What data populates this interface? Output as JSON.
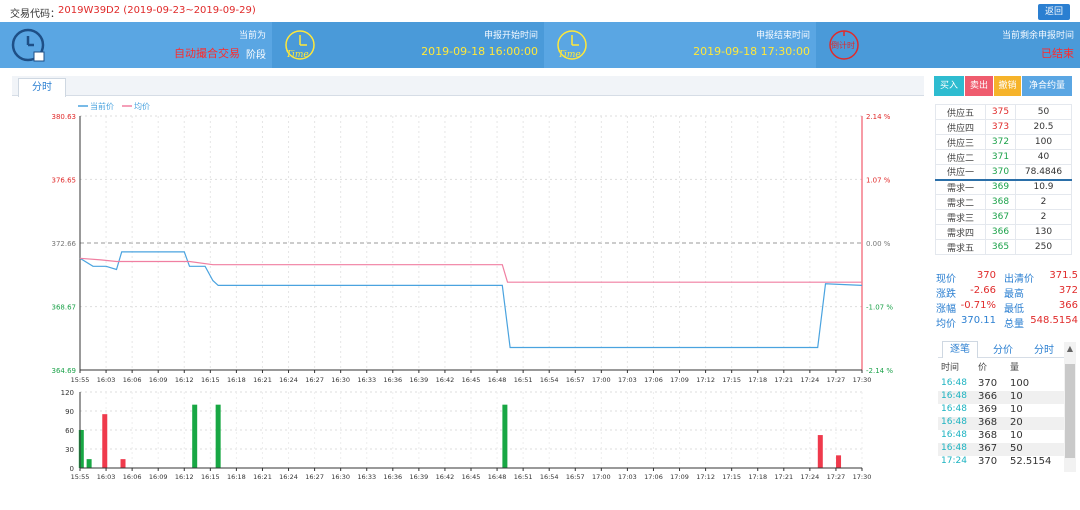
{
  "header": {
    "code_label": "交易代码：",
    "code_value": "2019W39D2 (2019-09-23~2019-09-29)",
    "back_label": "返回"
  },
  "infobar": {
    "stage_label": "当前为",
    "stage_value": "自动撮合交易",
    "stage_suffix": "阶段",
    "start_label": "申报开始时间",
    "start_value": "2019-09-18 16:00:00",
    "end_label": "申报结束时间",
    "end_value": "2019-09-18 17:30:00",
    "remain_label": "当前剩余申报时间",
    "remain_value": "已结束",
    "time_icon_text": "Time",
    "countdown_icon_text": "倒计时"
  },
  "tabs": {
    "fenshi": "分时"
  },
  "legend": {
    "current": "当前价",
    "average": "均价"
  },
  "buttons": {
    "buy": "买入",
    "sell": "卖出",
    "cancel": "撤销",
    "net": "净合约量"
  },
  "order_book": {
    "asks": [
      {
        "label": "供应五",
        "price": "375",
        "qty": "50"
      },
      {
        "label": "供应四",
        "price": "373",
        "qty": "20.5"
      },
      {
        "label": "供应三",
        "price": "372",
        "qty": "100"
      },
      {
        "label": "供应二",
        "price": "371",
        "qty": "40"
      },
      {
        "label": "供应一",
        "price": "370",
        "qty": "78.4846"
      }
    ],
    "bids": [
      {
        "label": "需求一",
        "price": "369",
        "qty": "10.9"
      },
      {
        "label": "需求二",
        "price": "368",
        "qty": "2"
      },
      {
        "label": "需求三",
        "price": "367",
        "qty": "2"
      },
      {
        "label": "需求四",
        "price": "366",
        "qty": "130"
      },
      {
        "label": "需求五",
        "price": "365",
        "qty": "250"
      }
    ]
  },
  "stats": {
    "now_label": "现价",
    "now": "370",
    "clear_label": "出清价",
    "clear": "371.5",
    "chg_label": "涨跌",
    "chg": "-2.66",
    "high_label": "最高",
    "high": "372",
    "pct_label": "涨幅",
    "pct": "-0.71%",
    "low_label": "最低",
    "low": "366",
    "avg_label": "均价",
    "avg": "370.11",
    "total_label": "总量",
    "total": "548.5154"
  },
  "ticks_panel": {
    "tab1": "逐笔",
    "tab2": "分价",
    "tab3": "分时",
    "col_time": "时间",
    "col_price": "价",
    "col_qty": "量",
    "rows": [
      {
        "time": "16:48",
        "price": "370",
        "qty": "100"
      },
      {
        "time": "16:48",
        "price": "366",
        "qty": "10"
      },
      {
        "time": "16:48",
        "price": "369",
        "qty": "10"
      },
      {
        "time": "16:48",
        "price": "368",
        "qty": "20"
      },
      {
        "time": "16:48",
        "price": "368",
        "qty": "10"
      },
      {
        "time": "16:48",
        "price": "367",
        "qty": "50"
      },
      {
        "time": "17:24",
        "price": "370",
        "qty": "52.5154"
      }
    ]
  },
  "chart_data": [
    {
      "type": "line",
      "title": "",
      "y_ticks": [
        "380.63",
        "376.65",
        "372.66",
        "368.67",
        "364.69"
      ],
      "y2_ticks": [
        "2.14 %",
        "1.07 %",
        "0.00 %",
        "-1.07 %",
        "-2.14 %"
      ],
      "ylim": [
        364.69,
        380.63
      ],
      "reference_price": 372.66,
      "x_ticks": [
        "15:55",
        "16:03",
        "16:06",
        "16:09",
        "16:12",
        "16:15",
        "16:18",
        "16:21",
        "16:24",
        "16:27",
        "16:30",
        "16:33",
        "16:36",
        "16:39",
        "16:42",
        "16:45",
        "16:48",
        "16:51",
        "16:54",
        "16:57",
        "17:00",
        "17:03",
        "17:06",
        "17:09",
        "17:12",
        "17:15",
        "17:18",
        "17:21",
        "17:24",
        "17:27",
        "17:30"
      ],
      "series": [
        {
          "name": "当前价",
          "color": "#4aa3df",
          "points": [
            [
              0,
              371.7
            ],
            [
              0.5,
              371.2
            ],
            [
              1.0,
              371.2
            ],
            [
              1.4,
              371.0
            ],
            [
              1.6,
              372.1
            ],
            [
              4.0,
              372.1
            ],
            [
              4.2,
              371.2
            ],
            [
              4.8,
              371.2
            ],
            [
              5.1,
              370.3
            ],
            [
              5.3,
              370.0
            ],
            [
              16.2,
              370.0
            ],
            [
              16.5,
              366.1
            ],
            [
              28.3,
              366.1
            ],
            [
              28.6,
              370.1
            ],
            [
              30.0,
              370.0
            ]
          ]
        },
        {
          "name": "均价",
          "color": "#f07fa1",
          "points": [
            [
              0,
              371.7
            ],
            [
              0.8,
              371.6
            ],
            [
              1.4,
              371.5
            ],
            [
              4.2,
              371.5
            ],
            [
              5.1,
              371.3
            ],
            [
              16.2,
              371.3
            ],
            [
              16.4,
              370.2
            ],
            [
              30.0,
              370.2
            ]
          ]
        }
      ]
    },
    {
      "type": "bar",
      "title": "",
      "ylim": [
        0,
        120
      ],
      "y_ticks": [
        "120",
        "90",
        "60",
        "30",
        "0"
      ],
      "x_ticks": [
        "15:55",
        "16:03",
        "16:06",
        "16:09",
        "16:12",
        "16:15",
        "16:18",
        "16:21",
        "16:24",
        "16:27",
        "16:30",
        "16:33",
        "16:36",
        "16:39",
        "16:42",
        "16:45",
        "16:48",
        "16:51",
        "16:54",
        "16:57",
        "17:00",
        "17:03",
        "17:06",
        "17:09",
        "17:12",
        "17:15",
        "17:18",
        "17:21",
        "17:24",
        "17:27",
        "17:30"
      ],
      "bars": [
        {
          "x": 0.05,
          "value": 60,
          "color": "#18a744"
        },
        {
          "x": 0.35,
          "value": 14,
          "color": "#18a744"
        },
        {
          "x": 0.95,
          "value": 85,
          "color": "#ef3a4c"
        },
        {
          "x": 1.65,
          "value": 14,
          "color": "#ef3a4c"
        },
        {
          "x": 4.4,
          "value": 100,
          "color": "#18a744"
        },
        {
          "x": 5.3,
          "value": 100,
          "color": "#18a744"
        },
        {
          "x": 16.3,
          "value": 100,
          "color": "#18a744"
        },
        {
          "x": 28.4,
          "value": 52,
          "color": "#ef3a4c"
        },
        {
          "x": 29.1,
          "value": 20,
          "color": "#ef3a4c"
        }
      ]
    }
  ]
}
